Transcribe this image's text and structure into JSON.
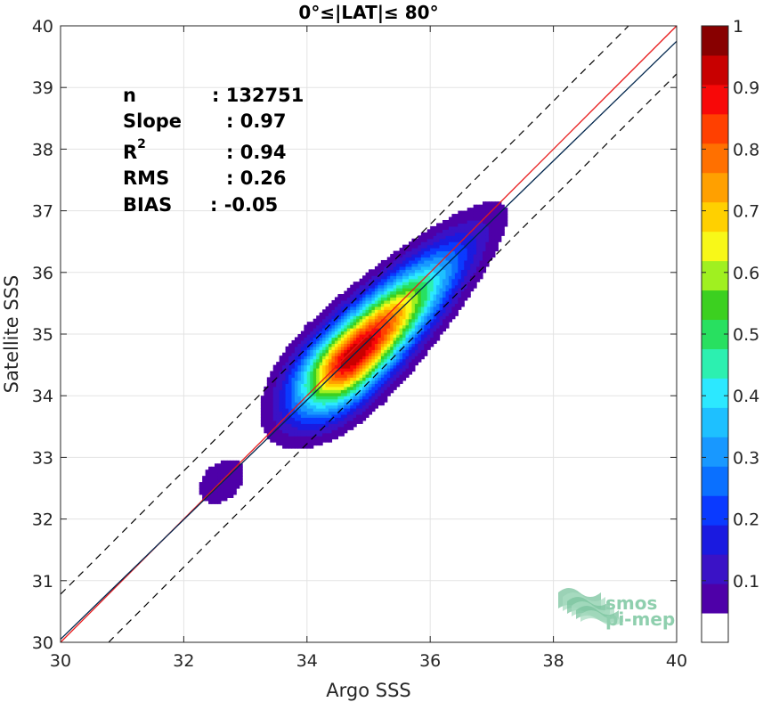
{
  "chart_data": {
    "type": "density-contour",
    "title": "0°≤|LAT|≤ 80°",
    "xlabel": "Argo SSS",
    "ylabel": "Satellite SSS",
    "xlim": [
      30,
      40
    ],
    "ylim": [
      30,
      40
    ],
    "xticks": [
      "30",
      "32",
      "34",
      "36",
      "38",
      "40"
    ],
    "yticks": [
      "30",
      "31",
      "32",
      "33",
      "34",
      "35",
      "36",
      "37",
      "38",
      "39",
      "40"
    ],
    "grid": true,
    "stats": [
      {
        "label": "n",
        "value": ": 132751"
      },
      {
        "label": "Slope",
        "value": ": 0.97"
      },
      {
        "label": "R",
        "sup": "2",
        "value": ": 0.94"
      },
      {
        "label": "RMS",
        "value": ": 0.26"
      },
      {
        "label": "BIAS",
        "value": ": -0.05"
      }
    ],
    "lines": {
      "identity": {
        "slope": 1,
        "intercept": 0,
        "color": "#e8191a"
      },
      "fit": {
        "slope": 0.97,
        "intercept": 0.95,
        "color": "#00264d"
      },
      "bounds": [
        {
          "slope": 1,
          "intercept": 0.78
        },
        {
          "slope": 1,
          "intercept": -0.78
        }
      ]
    },
    "density": {
      "main_peak": {
        "x": 34.75,
        "y": 34.65
      },
      "main_axis_end_low": {
        "x": 33.4,
        "y": 33.4
      },
      "main_axis_end_high": {
        "x": 36.95,
        "y": 36.95
      },
      "secondary_peak": {
        "x": 32.6,
        "y": 32.6
      },
      "levels": [
        0.05,
        0.1,
        0.15,
        0.2,
        0.25,
        0.3,
        0.35,
        0.4,
        0.45,
        0.5,
        0.55,
        0.6,
        0.65,
        0.7,
        0.75,
        0.8,
        0.85,
        0.9,
        0.95
      ]
    },
    "colorbar": {
      "range": [
        0,
        1
      ],
      "ticks": [
        "0.1",
        "0.2",
        "0.3",
        "0.4",
        "0.5",
        "0.6",
        "0.7",
        "0.8",
        "0.9",
        "1"
      ],
      "colors": [
        "#ffffff",
        "#4e00a8",
        "#3a12c6",
        "#1a1ae0",
        "#0a3aff",
        "#0a70ff",
        "#1898ff",
        "#1ec0ff",
        "#2ce8ff",
        "#2cf0b0",
        "#28e060",
        "#3cd020",
        "#a0f020",
        "#f8f818",
        "#ffd000",
        "#ffa000",
        "#ff7000",
        "#ff4000",
        "#f80808",
        "#c80000",
        "#880000"
      ]
    },
    "logo": {
      "line1": "smos",
      "line2": "pi-mep"
    }
  }
}
